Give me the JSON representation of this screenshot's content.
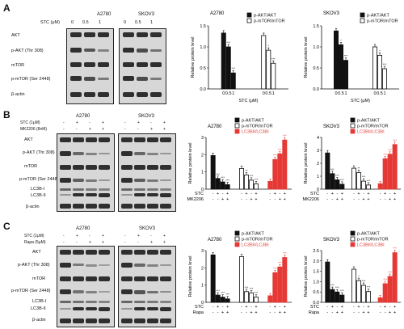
{
  "panels": [
    {
      "letter": "A",
      "blot": {
        "cells": [
          "A2780",
          "SKOV3"
        ],
        "treatments": [
          {
            "name": "STC (μM)",
            "values": [
              "0",
              "0.5",
              "1"
            ]
          }
        ],
        "rows": [
          "AKT",
          "p-AKT (Thr 308)",
          "mTOR",
          "p-mTOR (Ser 2448)",
          "β-actin"
        ]
      },
      "charts": [
        {
          "type": "bar",
          "title": "A2780",
          "ylabel": "Relative protein level",
          "xlabel": "STC (μM)",
          "categories": [
            "0",
            "0.5",
            "1"
          ],
          "ylim": [
            0,
            1.5
          ],
          "yticks": [
            "0.0",
            "0.5",
            "1.0",
            "1.5"
          ],
          "series": [
            {
              "name": "p-AKT/AKT",
              "color": "#111111",
              "fill": "#111111",
              "values": [
                1.33,
                1.0,
                0.38
              ],
              "sig": [
                "",
                "***",
                "***"
              ]
            },
            {
              "name": "p-mTOR/mTOR",
              "color": "#111111",
              "fill": "#ffffff",
              "values": [
                1.27,
                0.92,
                0.61
              ],
              "sig": [
                "",
                "*",
                "***"
              ]
            }
          ]
        },
        {
          "type": "bar",
          "title": "SKOV3",
          "ylabel": "Relative protein level",
          "xlabel": "STC (μM)",
          "categories": [
            "0",
            "0.5",
            "1"
          ],
          "ylim": [
            0,
            1.5
          ],
          "yticks": [
            "0.0",
            "0.5",
            "1.0",
            "1.5"
          ],
          "series": [
            {
              "name": "p-AKT/AKT",
              "color": "#111111",
              "fill": "#111111",
              "values": [
                1.38,
                1.05,
                0.68
              ],
              "sig": [
                "",
                "*",
                "***"
              ]
            },
            {
              "name": "p-mTOR/mTOR",
              "color": "#111111",
              "fill": "#ffffff",
              "values": [
                1.0,
                0.8,
                0.48
              ],
              "sig": [
                "",
                "*",
                "***"
              ]
            }
          ]
        }
      ]
    },
    {
      "letter": "B",
      "blot": {
        "cells": [
          "A2780",
          "SKOV3"
        ],
        "treatments": [
          {
            "name": "STC (1μM)",
            "values": [
              "-",
              "+",
              "-",
              "+"
            ]
          },
          {
            "name": "MK2206 (8nM)",
            "values": [
              "-",
              "-",
              "+",
              "+"
            ]
          }
        ],
        "rows": [
          "AKT",
          "p-AKT (Thr 308)",
          "mTOR",
          "p-mTOR (Ser 2448)",
          "LC3B-I",
          "LC3B-II",
          "β-actin"
        ]
      },
      "charts": [
        {
          "type": "bar",
          "title": "A2780",
          "ylabel": "Relative protein level",
          "ylim": [
            0,
            3
          ],
          "yticks": [
            "0",
            "1",
            "2",
            "3"
          ],
          "rows": [
            {
              "name": "STC",
              "values": [
                "-",
                "+",
                "-",
                "+"
              ]
            },
            {
              "name": "MK2206",
              "values": [
                "-",
                "-",
                "+",
                "+"
              ]
            }
          ],
          "series": [
            {
              "name": "p-AKT/AKT",
              "color": "#111111",
              "fill": "#111111",
              "values": [
                1.95,
                0.62,
                0.42,
                0.26
              ],
              "sig": [
                "",
                "***",
                "***",
                "***"
              ]
            },
            {
              "name": "p-mTOR/mTOR",
              "color": "#111111",
              "fill": "#ffffff",
              "values": [
                1.2,
                0.82,
                0.52,
                0.31
              ],
              "sig": [
                "",
                "**",
                "***",
                "***"
              ]
            },
            {
              "name": "LC3BII/LC3BI",
              "color": "#e53935",
              "fill": "#e53935",
              "values": [
                0.45,
                1.72,
                2.05,
                2.85
              ],
              "sig": [
                "",
                "***",
                "***",
                "***"
              ]
            }
          ]
        },
        {
          "type": "bar",
          "title": "SKOV3",
          "ylabel": "Relative protein level",
          "ylim": [
            0,
            4
          ],
          "yticks": [
            "0",
            "1",
            "2",
            "3",
            "4"
          ],
          "rows": [
            {
              "name": "STC",
              "values": [
                "-",
                "+",
                "-",
                "+"
              ]
            },
            {
              "name": "MK2206",
              "values": [
                "-",
                "-",
                "+",
                "+"
              ]
            }
          ],
          "series": [
            {
              "name": "p-AKT/AKT",
              "color": "#111111",
              "fill": "#111111",
              "values": [
                2.8,
                1.2,
                0.72,
                0.38
              ],
              "sig": [
                "",
                "***",
                "***",
                "***"
              ]
            },
            {
              "name": "p-mTOR/mTOR",
              "color": "#111111",
              "fill": "#ffffff",
              "values": [
                1.62,
                1.28,
                0.62,
                0.32
              ],
              "sig": [
                "",
                "**",
                "***",
                "***"
              ]
            },
            {
              "name": "LC3BII/LC3BI",
              "color": "#e53935",
              "fill": "#e53935",
              "values": [
                0.42,
                2.35,
                2.7,
                3.45
              ],
              "sig": [
                "",
                "***",
                "***",
                "***"
              ]
            }
          ]
        }
      ]
    },
    {
      "letter": "C",
      "blot": {
        "cells": [
          "A2780",
          "SKOV3"
        ],
        "treatments": [
          {
            "name": "STC (1μM)",
            "values": [
              "-",
              "+",
              "-",
              "+"
            ]
          },
          {
            "name": "Rapa (5μM)",
            "values": [
              "-",
              "-",
              "+",
              "+"
            ]
          }
        ],
        "rows": [
          "AKT",
          "p-AKT (Thr 308)",
          "mTOR",
          "p-mTOR (Ser 2448)",
          "LC3B-I",
          "LC3B-II",
          "β-actin"
        ]
      },
      "charts": [
        {
          "type": "bar",
          "title": "A2780",
          "ylabel": "Relative protein level",
          "ylim": [
            0,
            3
          ],
          "yticks": [
            "0",
            "1",
            "2",
            "3"
          ],
          "rows": [
            {
              "name": "STC",
              "values": [
                "-",
                "+",
                "-",
                "+"
              ]
            },
            {
              "name": "Rapa",
              "values": [
                "-",
                "-",
                "+",
                "+"
              ]
            }
          ],
          "series": [
            {
              "name": "p-AKT/AKT",
              "color": "#111111",
              "fill": "#111111",
              "values": [
                2.75,
                0.42,
                0.3,
                0.2
              ],
              "sig": [
                "",
                "***",
                "***",
                "***"
              ]
            },
            {
              "name": "p-mTOR/mTOR",
              "color": "#111111",
              "fill": "#ffffff",
              "values": [
                2.65,
                0.62,
                0.55,
                0.3
              ],
              "sig": [
                "",
                "***",
                "***",
                "***"
              ]
            },
            {
              "name": "LC3BII/LC3BI",
              "color": "#e53935",
              "fill": "#e53935",
              "values": [
                0.38,
                1.72,
                2.05,
                2.6
              ],
              "sig": [
                "",
                "***",
                "***",
                "***"
              ]
            }
          ]
        },
        {
          "type": "bar",
          "title": "SKOV3",
          "ylabel": "Relative protein level",
          "ylim": [
            0,
            2.5
          ],
          "yticks": [
            "0.0",
            "0.5",
            "1.0",
            "1.5",
            "2.0",
            "2.5"
          ],
          "rows": [
            {
              "name": "STC",
              "values": [
                "-",
                "+",
                "-",
                "+"
              ]
            },
            {
              "name": "Rapa",
              "values": [
                "-",
                "-",
                "+",
                "+"
              ]
            }
          ],
          "series": [
            {
              "name": "p-AKT/AKT",
              "color": "#111111",
              "fill": "#111111",
              "values": [
                1.95,
                0.62,
                0.5,
                0.35
              ],
              "sig": [
                "",
                "***",
                "***",
                "***"
              ]
            },
            {
              "name": "p-mTOR/mTOR",
              "color": "#111111",
              "fill": "#ffffff",
              "values": [
                1.6,
                1.05,
                0.82,
                0.52
              ],
              "sig": [
                "",
                "*",
                "***",
                "***"
              ]
            },
            {
              "name": "LC3BII/LC3BI",
              "color": "#e53935",
              "fill": "#e53935",
              "values": [
                0.22,
                0.9,
                1.25,
                2.4
              ],
              "sig": [
                "",
                "***",
                "***",
                "***"
              ]
            }
          ]
        }
      ]
    }
  ]
}
